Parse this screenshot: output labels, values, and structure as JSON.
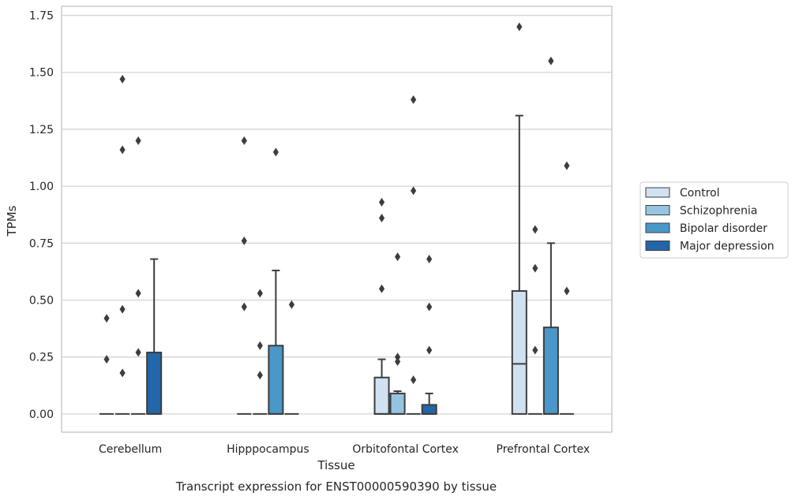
{
  "chart_data": {
    "type": "box",
    "title": "",
    "caption": "Transcript expression for ENST00000590390 by tissue",
    "xlabel": "Tissue",
    "ylabel": "TPMs",
    "ylim": [
      -0.08,
      1.79
    ],
    "yticks": [
      "0.00",
      "0.25",
      "0.50",
      "0.75",
      "1.00",
      "1.25",
      "1.50",
      "1.75"
    ],
    "ytick_values": [
      0,
      0.25,
      0.5,
      0.75,
      1.0,
      1.25,
      1.5,
      1.75
    ],
    "grid": "horizontal",
    "legend_position": "right",
    "categories": [
      "Cerebellum",
      "Hipppocampus",
      "Orbitofontal Cortex",
      "Prefrontal Cortex"
    ],
    "series": [
      {
        "name": "Control",
        "color": "#d0e1f2",
        "boxes": [
          {
            "q1": 0,
            "median": 0,
            "q3": 0,
            "whisker_low": 0,
            "whisker_high": 0,
            "outliers": [
              0.42,
              0.24
            ]
          },
          {
            "q1": 0,
            "median": 0,
            "q3": 0,
            "whisker_low": 0,
            "whisker_high": 0,
            "outliers": [
              1.2,
              0.76,
              0.47
            ]
          },
          {
            "q1": 0,
            "median": 0,
            "q3": 0.16,
            "whisker_low": 0,
            "whisker_high": 0.24,
            "outliers": [
              0.93,
              0.86,
              0.55
            ]
          },
          {
            "q1": 0,
            "median": 0.22,
            "q3": 0.54,
            "whisker_low": 0,
            "whisker_high": 1.31,
            "outliers": [
              1.7
            ]
          }
        ]
      },
      {
        "name": "Schizophrenia",
        "color": "#94c4df",
        "boxes": [
          {
            "q1": 0,
            "median": 0,
            "q3": 0,
            "whisker_low": 0,
            "whisker_high": 0,
            "outliers": [
              1.47,
              1.16,
              0.46,
              0.18
            ]
          },
          {
            "q1": 0,
            "median": 0,
            "q3": 0,
            "whisker_low": 0,
            "whisker_high": 0,
            "outliers": [
              0.53,
              0.3,
              0.17
            ]
          },
          {
            "q1": 0,
            "median": 0,
            "q3": 0.09,
            "whisker_low": 0,
            "whisker_high": 0.1,
            "outliers": [
              0.69,
              0.25,
              0.23
            ]
          },
          {
            "q1": 0,
            "median": 0,
            "q3": 0,
            "whisker_low": 0,
            "whisker_high": 0,
            "outliers": [
              0.81,
              0.64,
              0.28
            ]
          }
        ]
      },
      {
        "name": "Bipolar disorder",
        "color": "#4a98c9",
        "boxes": [
          {
            "q1": 0,
            "median": 0,
            "q3": 0,
            "whisker_low": 0,
            "whisker_high": 0,
            "outliers": [
              1.2,
              0.53,
              0.27
            ]
          },
          {
            "q1": 0,
            "median": 0,
            "q3": 0.3,
            "whisker_low": 0,
            "whisker_high": 0.63,
            "outliers": [
              1.15
            ]
          },
          {
            "q1": 0,
            "median": 0,
            "q3": 0,
            "whisker_low": 0,
            "whisker_high": 0,
            "outliers": [
              1.38,
              0.98,
              0.15
            ]
          },
          {
            "q1": 0,
            "median": 0,
            "q3": 0.38,
            "whisker_low": 0,
            "whisker_high": 0.75,
            "outliers": [
              1.55
            ]
          }
        ]
      },
      {
        "name": "Major depression",
        "color": "#2366ab",
        "boxes": [
          {
            "q1": 0,
            "median": 0,
            "q3": 0.27,
            "whisker_low": 0,
            "whisker_high": 0.68,
            "outliers": []
          },
          {
            "q1": 0,
            "median": 0,
            "q3": 0,
            "whisker_low": 0,
            "whisker_high": 0,
            "outliers": [
              0.48
            ]
          },
          {
            "q1": 0,
            "median": 0,
            "q3": 0.04,
            "whisker_low": 0,
            "whisker_high": 0.09,
            "outliers": [
              0.68,
              0.47,
              0.28
            ]
          },
          {
            "q1": 0,
            "median": 0,
            "q3": 0,
            "whisker_low": 0,
            "whisker_high": 0,
            "outliers": [
              1.09,
              0.54
            ]
          }
        ]
      }
    ]
  }
}
